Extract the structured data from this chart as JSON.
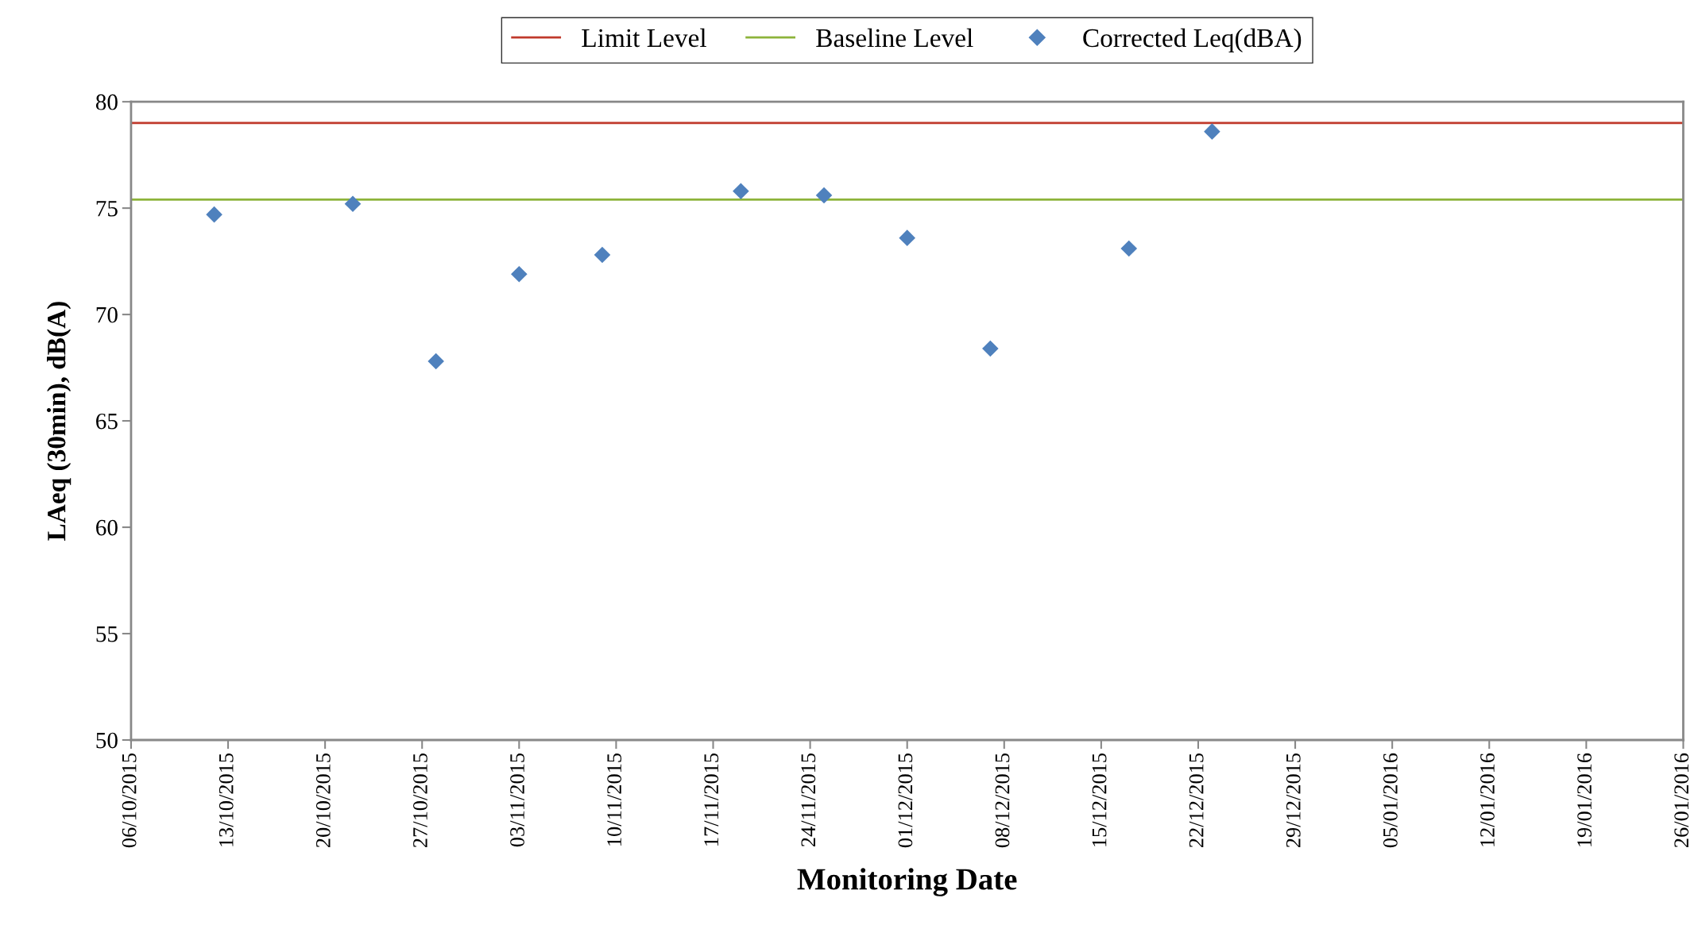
{
  "chart_data": {
    "type": "scatter",
    "xlabel": "Monitoring Date",
    "ylabel": "LAeq (30min), dB(A)",
    "x": [
      "2015-10-12",
      "2015-10-22",
      "2015-10-28",
      "2015-11-03",
      "2015-11-09",
      "2015-11-19",
      "2015-11-25",
      "2015-12-01",
      "2015-12-07",
      "2015-12-17",
      "2015-12-23"
    ],
    "series": [
      {
        "name": "Corrected Leq(dBA)",
        "color": "#4f81bd",
        "values": [
          74.7,
          75.2,
          67.8,
          71.9,
          72.8,
          75.8,
          75.6,
          73.6,
          68.4,
          73.1,
          78.6
        ]
      }
    ],
    "ref_lines": [
      {
        "axis": "y",
        "value": 79,
        "label": "Limit Level",
        "color": "#c0392b"
      },
      {
        "axis": "y",
        "value": 75.4,
        "label": "Baseline Level",
        "color": "#8db33a"
      }
    ],
    "xlim": [
      "2015-10-06",
      "2016-01-26"
    ],
    "xticks": [
      {
        "value": "2015-10-06",
        "label": "06/10/2015"
      },
      {
        "value": "2015-10-13",
        "label": "13/10/2015"
      },
      {
        "value": "2015-10-20",
        "label": "20/10/2015"
      },
      {
        "value": "2015-10-27",
        "label": "27/10/2015"
      },
      {
        "value": "2015-11-03",
        "label": "03/11/2015"
      },
      {
        "value": "2015-11-10",
        "label": "10/11/2015"
      },
      {
        "value": "2015-11-17",
        "label": "17/11/2015"
      },
      {
        "value": "2015-11-24",
        "label": "24/11/2015"
      },
      {
        "value": "2015-12-01",
        "label": "01/12/2015"
      },
      {
        "value": "2015-12-08",
        "label": "08/12/2015"
      },
      {
        "value": "2015-12-15",
        "label": "15/12/2015"
      },
      {
        "value": "2015-12-22",
        "label": "22/12/2015"
      },
      {
        "value": "2015-12-29",
        "label": "29/12/2015"
      },
      {
        "value": "2016-01-05",
        "label": "05/01/2016"
      },
      {
        "value": "2016-01-12",
        "label": "12/01/2016"
      },
      {
        "value": "2016-01-19",
        "label": "19/01/2016"
      },
      {
        "value": "2016-01-26",
        "label": "26/01/2016"
      }
    ],
    "ylim": [
      50,
      80
    ],
    "yticks": [
      50,
      55,
      60,
      65,
      70,
      75,
      80
    ],
    "grid": false,
    "legend": "top",
    "marker": "diamond"
  }
}
